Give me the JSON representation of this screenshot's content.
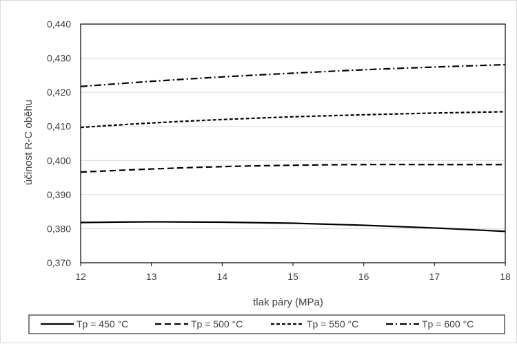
{
  "chart_data": {
    "type": "line",
    "title": "",
    "xlabel": "tlak páry (MPa)",
    "ylabel": "účinost R-C oběhu",
    "xlim": [
      12,
      18
    ],
    "ylim": [
      0.37,
      0.44
    ],
    "x_ticks": [
      12,
      13,
      14,
      15,
      16,
      17,
      18
    ],
    "x_tick_labels": [
      "12",
      "13",
      "14",
      "15",
      "16",
      "17",
      "18"
    ],
    "y_ticks": [
      0.37,
      0.38,
      0.39,
      0.4,
      0.41,
      0.42,
      0.43,
      0.44
    ],
    "y_tick_labels": [
      "0,370",
      "0,380",
      "0,390",
      "0,400",
      "0,410",
      "0,420",
      "0,430",
      "0,440"
    ],
    "grid": "horizontal",
    "legend_position": "bottom",
    "x": [
      12,
      13,
      14,
      15,
      16,
      17,
      18
    ],
    "series": [
      {
        "name": "Tp = 450 °C",
        "dash": "solid",
        "color": "#000000",
        "values": [
          0.3818,
          0.382,
          0.3819,
          0.3816,
          0.381,
          0.3802,
          0.3792
        ]
      },
      {
        "name": "Tp = 500 °C",
        "dash": "dashed",
        "color": "#000000",
        "values": [
          0.3966,
          0.3975,
          0.3982,
          0.3986,
          0.3988,
          0.3988,
          0.3988
        ]
      },
      {
        "name": "Tp = 550 °C",
        "dash": "short-dashed",
        "color": "#000000",
        "values": [
          0.4097,
          0.411,
          0.412,
          0.4128,
          0.4134,
          0.4139,
          0.4143
        ]
      },
      {
        "name": "Tp = 600 °C",
        "dash": "dash-dot",
        "color": "#000000",
        "values": [
          0.4217,
          0.4232,
          0.4245,
          0.4256,
          0.4266,
          0.4274,
          0.4281
        ]
      }
    ]
  }
}
